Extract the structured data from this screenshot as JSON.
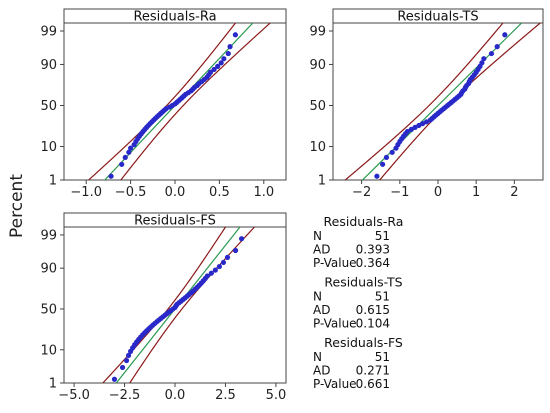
{
  "ylabel": "Percent",
  "chart_data": [
    {
      "type": "scatter",
      "title": "Residuals-Ra",
      "xlim": [
        -1.25,
        1.25
      ],
      "xticks": [
        -1.0,
        -0.5,
        0.0,
        0.5,
        1.0
      ],
      "xtick_labels": [
        "−1.0",
        "−0.5",
        "0.0",
        "0.5",
        "1.0"
      ],
      "yticks": [
        1,
        10,
        50,
        90,
        99
      ],
      "y_scale": "normal-probability",
      "fit": {
        "mean": 0.0,
        "sd": 0.34
      },
      "residuals": [
        -0.72,
        -0.6,
        -0.56,
        -0.52,
        -0.5,
        -0.46,
        -0.44,
        -0.42,
        -0.4,
        -0.38,
        -0.36,
        -0.34,
        -0.32,
        -0.3,
        -0.28,
        -0.26,
        -0.24,
        -0.22,
        -0.2,
        -0.18,
        -0.16,
        -0.14,
        -0.12,
        -0.1,
        -0.06,
        -0.03,
        0.0,
        0.02,
        0.04,
        0.06,
        0.08,
        0.1,
        0.12,
        0.15,
        0.18,
        0.2,
        0.22,
        0.25,
        0.27,
        0.3,
        0.33,
        0.36,
        0.38,
        0.4,
        0.44,
        0.48,
        0.52,
        0.55,
        0.6,
        0.62,
        0.68
      ]
    },
    {
      "type": "scatter",
      "title": "Residuals-TS",
      "xlim": [
        -2.75,
        2.75
      ],
      "xticks": [
        -2,
        -1,
        0,
        1,
        2
      ],
      "xtick_labels": [
        "−2",
        "−1",
        "0",
        "1",
        "2"
      ],
      "yticks": [
        1,
        10,
        50,
        90,
        99
      ],
      "y_scale": "normal-probability",
      "fit": {
        "mean": 0.0,
        "sd": 0.85
      },
      "residuals": [
        -1.6,
        -1.45,
        -1.35,
        -1.2,
        -1.1,
        -1.05,
        -1.0,
        -0.95,
        -0.9,
        -0.85,
        -0.8,
        -0.7,
        -0.6,
        -0.5,
        -0.4,
        -0.3,
        -0.2,
        -0.15,
        -0.1,
        -0.05,
        0.0,
        0.05,
        0.1,
        0.15,
        0.2,
        0.25,
        0.3,
        0.35,
        0.4,
        0.45,
        0.5,
        0.55,
        0.6,
        0.62,
        0.65,
        0.7,
        0.72,
        0.75,
        0.8,
        0.82,
        0.85,
        0.9,
        0.95,
        1.0,
        1.05,
        1.1,
        1.15,
        1.2,
        1.4,
        1.55,
        1.75
      ]
    },
    {
      "type": "scatter",
      "title": "Residuals-FS",
      "xlim": [
        -5.5,
        5.5
      ],
      "xticks": [
        -5.0,
        -2.5,
        0.0,
        2.5,
        5.0
      ],
      "xtick_labels": [
        "−5.0",
        "−2.5",
        "0.0",
        "2.5",
        "5.0"
      ],
      "yticks": [
        1,
        10,
        50,
        90,
        99
      ],
      "y_scale": "normal-probability",
      "fit": {
        "mean": 0.0,
        "sd": 1.25
      },
      "residuals": [
        -3.0,
        -2.6,
        -2.4,
        -2.3,
        -2.2,
        -2.1,
        -2.0,
        -1.9,
        -1.8,
        -1.7,
        -1.6,
        -1.5,
        -1.4,
        -1.3,
        -1.2,
        -1.1,
        -1.0,
        -0.9,
        -0.8,
        -0.7,
        -0.6,
        -0.5,
        -0.4,
        -0.3,
        -0.2,
        -0.1,
        0.0,
        0.05,
        0.1,
        0.2,
        0.3,
        0.4,
        0.5,
        0.6,
        0.7,
        0.8,
        0.9,
        1.0,
        1.1,
        1.2,
        1.3,
        1.4,
        1.5,
        1.6,
        1.8,
        2.0,
        2.2,
        2.4,
        2.6,
        3.0,
        3.3
      ]
    }
  ],
  "stats": [
    {
      "title": "Residuals-Ra",
      "rows": [
        [
          "N",
          "51"
        ],
        [
          "AD",
          "0.393"
        ],
        [
          "P-Value",
          "0.364"
        ]
      ]
    },
    {
      "title": "Residuals-TS",
      "rows": [
        [
          "N",
          "51"
        ],
        [
          "AD",
          "0.615"
        ],
        [
          "P-Value",
          "0.104"
        ]
      ]
    },
    {
      "title": "Residuals-FS",
      "rows": [
        [
          "N",
          "51"
        ],
        [
          "AD",
          "0.271"
        ],
        [
          "P-Value",
          "0.661"
        ]
      ]
    }
  ],
  "colors": {
    "point": "#2929c9",
    "fit_line": "#2a9a52",
    "ci_line": "#8b1a1a",
    "frame": "#444444"
  }
}
